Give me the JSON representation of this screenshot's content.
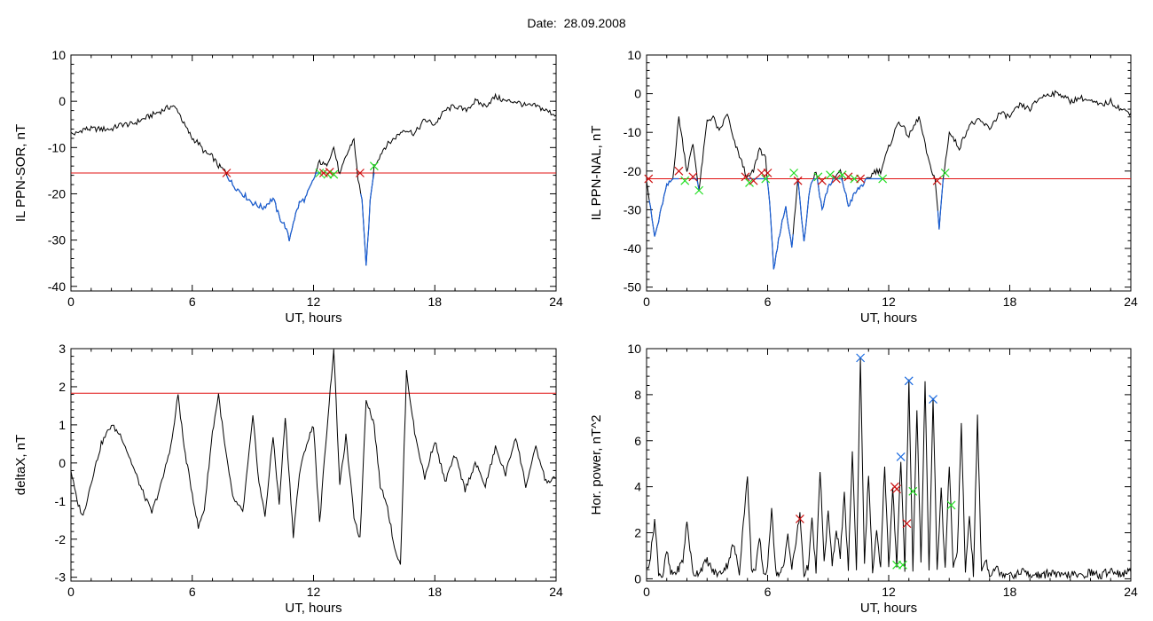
{
  "figure": {
    "date_label": "Date:",
    "date": "28.09.2008"
  },
  "colors": {
    "trace": "#000000",
    "threshold": "#e01010",
    "highlight": "#1a5fd6",
    "green": "#22dd22",
    "red": "#cc1010",
    "blue": "#1a6ae0"
  },
  "chart_data": [
    {
      "type": "line",
      "xlabel": "UT, hours",
      "ylabel": "IL PPN-SOR, nT",
      "xlim": [
        0,
        24
      ],
      "ylim": [
        -41,
        10
      ],
      "xticks": [
        0,
        6,
        12,
        18,
        24
      ],
      "yticks": [
        10,
        0,
        -10,
        -20,
        -30,
        -40
      ],
      "threshold": -15.5,
      "series": [
        {
          "x": [
            0,
            0.3,
            0.6,
            1,
            1.5,
            2,
            2.5,
            3,
            3.5,
            4,
            4.5,
            5,
            5.3,
            5.6,
            6,
            6.3,
            6.6,
            7,
            7.3,
            7.6,
            8,
            8.5,
            9,
            9.5,
            10,
            10.3,
            10.6,
            10.8,
            11,
            11.3,
            11.6,
            12,
            12.3,
            12.6,
            13,
            13.3,
            13.6,
            14,
            14.2,
            14.4,
            14.6,
            14.8,
            15,
            15.5,
            16,
            16.5,
            17,
            17.5,
            18,
            18.5,
            19,
            19.5,
            20,
            20.5,
            21,
            21.5,
            22,
            22.5,
            23,
            23.5,
            24
          ],
          "y": [
            -7,
            -7,
            -6,
            -6,
            -6,
            -6,
            -5,
            -5,
            -4,
            -3,
            -2,
            -1,
            -2,
            -5,
            -8,
            -9,
            -11,
            -12,
            -14,
            -15,
            -18,
            -20,
            -22,
            -23,
            -21,
            -25,
            -27,
            -30,
            -26,
            -22,
            -21,
            -17,
            -13,
            -14,
            -10,
            -16,
            -12,
            -8,
            -17,
            -21,
            -36,
            -22,
            -14,
            -10,
            -8,
            -6,
            -7,
            -4,
            -5,
            -2,
            -1,
            -2,
            0,
            -1,
            1,
            0,
            0,
            -1,
            -1,
            -2,
            -3
          ]
        }
      ],
      "markers": [
        {
          "x": 7.7,
          "y": -15.5,
          "color": "red"
        },
        {
          "x": 12.3,
          "y": -15.5,
          "color": "green"
        },
        {
          "x": 12.5,
          "y": -15.5,
          "color": "red"
        },
        {
          "x": 12.7,
          "y": -15.8,
          "color": "green"
        },
        {
          "x": 12.8,
          "y": -15.3,
          "color": "red"
        },
        {
          "x": 13.0,
          "y": -15.8,
          "color": "green"
        },
        {
          "x": 14.3,
          "y": -15.5,
          "color": "red"
        },
        {
          "x": 15.0,
          "y": -14,
          "color": "green"
        }
      ],
      "highlight_ranges": [
        [
          7.7,
          12.3
        ],
        [
          14.3,
          15.0
        ]
      ]
    },
    {
      "type": "line",
      "xlabel": "UT, hours",
      "ylabel": "IL PPN-NAL, nT",
      "xlim": [
        0,
        24
      ],
      "ylim": [
        -51,
        10
      ],
      "xticks": [
        0,
        6,
        12,
        18,
        24
      ],
      "yticks": [
        10,
        0,
        -10,
        -20,
        -30,
        -40,
        -50
      ],
      "threshold": -22,
      "series": [
        {
          "x": [
            0,
            0.2,
            0.4,
            0.6,
            0.8,
            1,
            1.3,
            1.6,
            2,
            2.3,
            2.6,
            3,
            3.3,
            3.6,
            4,
            4.3,
            4.6,
            5,
            5.3,
            5.6,
            5.9,
            6.1,
            6.3,
            6.6,
            6.9,
            7.2,
            7.5,
            7.8,
            8.1,
            8.4,
            8.7,
            9,
            9.3,
            9.6,
            10,
            10.3,
            10.6,
            11,
            11.3,
            11.6,
            12,
            12.5,
            13,
            13.5,
            14,
            14.3,
            14.5,
            14.7,
            15,
            15.5,
            16,
            16.5,
            17,
            17.5,
            18,
            18.5,
            19,
            19.5,
            20,
            20.5,
            21,
            21.5,
            22,
            22.5,
            23,
            23.5,
            24
          ],
          "y": [
            -22,
            -30,
            -37,
            -33,
            -28,
            -24,
            -22,
            -6,
            -20,
            -13,
            -25,
            -7,
            -6,
            -10,
            -5,
            -12,
            -16,
            -22,
            -20,
            -14,
            -17,
            -28,
            -46,
            -36,
            -29,
            -40,
            -22,
            -38,
            -24,
            -20,
            -30,
            -24,
            -22,
            -20,
            -29,
            -26,
            -24,
            -22,
            -20,
            -20,
            -14,
            -7,
            -11,
            -6,
            -18,
            -22,
            -35,
            -22,
            -10,
            -14,
            -8,
            -7,
            -9,
            -5,
            -6,
            -3,
            -4,
            -1,
            0,
            0,
            -2,
            -1,
            -2,
            -3,
            -2,
            -4,
            -5
          ]
        }
      ],
      "markers": [
        {
          "x": 0.1,
          "y": -22,
          "color": "red"
        },
        {
          "x": 1.6,
          "y": -20,
          "color": "red"
        },
        {
          "x": 1.9,
          "y": -22.5,
          "color": "green"
        },
        {
          "x": 2.3,
          "y": -21.5,
          "color": "red"
        },
        {
          "x": 2.6,
          "y": -25,
          "color": "green"
        },
        {
          "x": 4.9,
          "y": -21.5,
          "color": "red"
        },
        {
          "x": 5.1,
          "y": -23,
          "color": "green"
        },
        {
          "x": 5.3,
          "y": -22.5,
          "color": "red"
        },
        {
          "x": 5.7,
          "y": -20.5,
          "color": "red"
        },
        {
          "x": 5.9,
          "y": -22,
          "color": "green"
        },
        {
          "x": 6.0,
          "y": -20.5,
          "color": "red"
        },
        {
          "x": 7.3,
          "y": -20.5,
          "color": "green"
        },
        {
          "x": 7.5,
          "y": -22.5,
          "color": "red"
        },
        {
          "x": 8.5,
          "y": -21.5,
          "color": "green"
        },
        {
          "x": 8.7,
          "y": -22.5,
          "color": "red"
        },
        {
          "x": 9.1,
          "y": -21,
          "color": "green"
        },
        {
          "x": 9.4,
          "y": -22,
          "color": "red"
        },
        {
          "x": 9.7,
          "y": -21,
          "color": "green"
        },
        {
          "x": 10.0,
          "y": -21.5,
          "color": "red"
        },
        {
          "x": 10.3,
          "y": -22,
          "color": "green"
        },
        {
          "x": 10.6,
          "y": -22,
          "color": "red"
        },
        {
          "x": 11.7,
          "y": -22,
          "color": "green"
        },
        {
          "x": 14.4,
          "y": -22.5,
          "color": "red"
        },
        {
          "x": 14.8,
          "y": -20.5,
          "color": "green"
        }
      ],
      "highlight_ranges": [
        [
          0.1,
          1.6
        ],
        [
          2.3,
          2.6
        ],
        [
          4.9,
          7.3
        ],
        [
          7.5,
          11.7
        ],
        [
          14.4,
          14.8
        ]
      ]
    },
    {
      "type": "line",
      "xlabel": "UT, hours",
      "ylabel": "deltaX, nT",
      "xlim": [
        0,
        24
      ],
      "ylim": [
        -3.1,
        3
      ],
      "xticks": [
        0,
        6,
        12,
        18,
        24
      ],
      "yticks": [
        3,
        2,
        1,
        0,
        -1,
        -2,
        -3
      ],
      "threshold": 1.83,
      "series": [
        {
          "x": [
            0,
            0.3,
            0.6,
            1,
            1.5,
            2,
            2.5,
            3,
            3.5,
            4,
            4.5,
            5,
            5.3,
            5.6,
            6,
            6.3,
            6.6,
            7,
            7.3,
            7.6,
            8,
            8.5,
            9,
            9.3,
            9.6,
            10,
            10.3,
            10.6,
            11,
            11.3,
            11.6,
            12,
            12.3,
            12.6,
            13,
            13.3,
            13.6,
            14,
            14.3,
            14.6,
            15,
            15.3,
            15.6,
            16,
            16.3,
            16.6,
            17,
            17.5,
            18,
            18.5,
            19,
            19.5,
            20,
            20.5,
            21,
            21.5,
            22,
            22.5,
            23,
            23.5,
            24
          ],
          "y": [
            -0.2,
            -1.0,
            -1.4,
            -0.5,
            0.5,
            1.0,
            0.7,
            0.0,
            -0.7,
            -1.3,
            -0.5,
            0.6,
            1.8,
            0.4,
            -0.8,
            -1.7,
            -1.2,
            0.8,
            1.8,
            0.5,
            -0.9,
            -1.3,
            1.2,
            -0.5,
            -1.4,
            0.7,
            -1.1,
            1.2,
            -1.9,
            -0.3,
            0.4,
            1.0,
            -1.6,
            0.5,
            3.0,
            -0.6,
            0.7,
            -1.4,
            -2.0,
            1.7,
            1.0,
            -0.6,
            -1.0,
            -2.2,
            -2.7,
            2.4,
            0.8,
            -0.4,
            0.6,
            -0.5,
            0.2,
            -0.7,
            0.0,
            -0.6,
            0.4,
            -0.3,
            0.7,
            -0.6,
            0.4,
            -0.5,
            -0.4
          ]
        }
      ],
      "markers": [],
      "highlight_ranges": []
    },
    {
      "type": "line",
      "xlabel": "UT, hours",
      "ylabel": "Hor. power, nT^2",
      "xlim": [
        0,
        24
      ],
      "ylim": [
        -0.1,
        10
      ],
      "xticks": [
        0,
        6,
        12,
        18,
        24
      ],
      "yticks": [
        10,
        8,
        6,
        4,
        2,
        0
      ],
      "threshold": null,
      "series": [
        {
          "x": [
            0,
            0.2,
            0.4,
            0.6,
            0.8,
            1,
            1.2,
            1.5,
            1.8,
            2,
            2.3,
            2.6,
            3,
            3.3,
            3.6,
            4,
            4.3,
            4.6,
            4.8,
            5,
            5.2,
            5.4,
            5.6,
            5.8,
            6,
            6.2,
            6.4,
            6.6,
            6.8,
            7,
            7.2,
            7.4,
            7.6,
            7.8,
            8,
            8.2,
            8.4,
            8.6,
            8.8,
            9,
            9.2,
            9.4,
            9.6,
            9.8,
            10,
            10.2,
            10.4,
            10.6,
            10.8,
            11,
            11.2,
            11.4,
            11.6,
            11.8,
            12,
            12.2,
            12.4,
            12.6,
            12.8,
            13,
            13.2,
            13.4,
            13.6,
            13.8,
            14,
            14.2,
            14.4,
            14.6,
            14.8,
            15,
            15.2,
            15.4,
            15.6,
            15.8,
            16,
            16.2,
            16.4,
            16.6,
            16.8,
            17,
            17.3,
            17.6,
            18,
            18.3,
            18.6,
            19,
            19.3,
            19.6,
            20,
            20.5,
            21,
            21.5,
            22,
            22.5,
            23,
            23.5,
            24
          ],
          "y": [
            0.3,
            1.0,
            2.6,
            0.3,
            0.1,
            1.2,
            0.2,
            0.3,
            0.8,
            2.5,
            0.2,
            0.3,
            0.8,
            0.3,
            0.2,
            0.6,
            1.5,
            0.3,
            2.5,
            4.4,
            0.5,
            0.3,
            1.8,
            0.2,
            0.4,
            3.2,
            0.3,
            0.2,
            0.5,
            2.0,
            0.4,
            1.6,
            2.8,
            0.2,
            0.5,
            2.5,
            0.3,
            4.8,
            0.6,
            3.0,
            0.5,
            2.2,
            1.0,
            3.6,
            0.4,
            5.6,
            0.3,
            9.6,
            0.5,
            4.6,
            0.3,
            2.0,
            0.4,
            5.0,
            0.5,
            4.0,
            0.6,
            5.2,
            0.3,
            8.6,
            0.4,
            7.4,
            0.6,
            8.5,
            0.3,
            7.8,
            0.5,
            3.8,
            0.4,
            5.0,
            0.4,
            1.2,
            6.6,
            0.3,
            2.8,
            0.2,
            7.0,
            0.3,
            0.9,
            0.2,
            0.5,
            0.2,
            0.3,
            0.1,
            0.4,
            0.1,
            0.2,
            0.1,
            0.3,
            0.1,
            0.2,
            0.1,
            0.3,
            0.1,
            0.4,
            0.2,
            0.3
          ]
        }
      ],
      "markers": [
        {
          "x": 7.6,
          "y": 2.6,
          "color": "red"
        },
        {
          "x": 10.6,
          "y": 9.6,
          "color": "blue"
        },
        {
          "x": 12.3,
          "y": 4.0,
          "color": "red"
        },
        {
          "x": 12.4,
          "y": 3.9,
          "color": "red"
        },
        {
          "x": 12.4,
          "y": 0.6,
          "color": "green"
        },
        {
          "x": 12.6,
          "y": 5.3,
          "color": "blue"
        },
        {
          "x": 12.7,
          "y": 0.6,
          "color": "green"
        },
        {
          "x": 12.9,
          "y": 2.4,
          "color": "red"
        },
        {
          "x": 13.0,
          "y": 8.6,
          "color": "blue"
        },
        {
          "x": 13.2,
          "y": 3.8,
          "color": "green"
        },
        {
          "x": 14.2,
          "y": 7.8,
          "color": "blue"
        },
        {
          "x": 15.1,
          "y": 3.2,
          "color": "green"
        }
      ],
      "highlight_ranges": []
    }
  ]
}
